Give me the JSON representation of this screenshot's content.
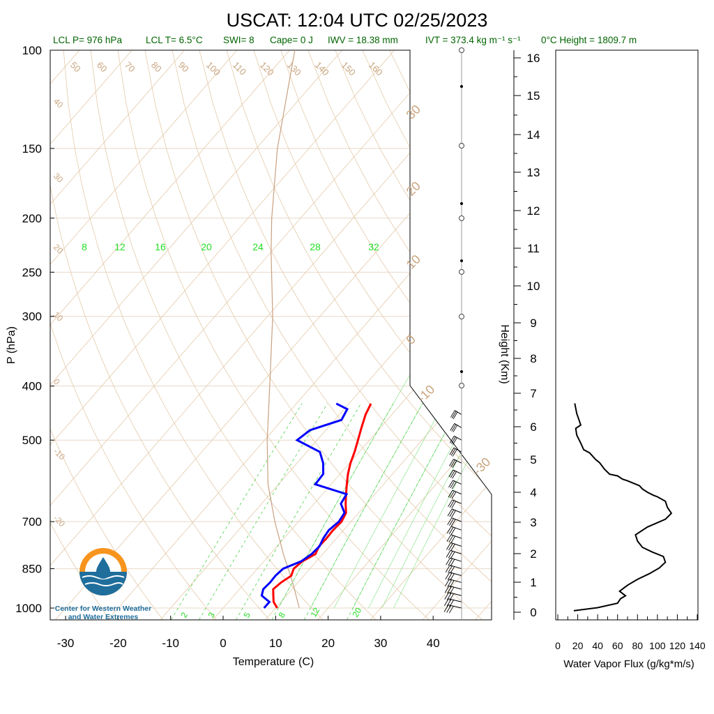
{
  "title": "USCAT: 12:04 UTC 02/25/2023",
  "stats": {
    "lcl_p": "LCL P= 976 hPa",
    "lcl_t": "LCL T= 6.5°C",
    "swi": "SWI= 8",
    "cape": "Cape= 0 J",
    "iwv": "IWV = 18.38 mm",
    "ivt": "IVT = 373.4 kg m⁻¹ s⁻¹",
    "zero_height": "0°C Height = 1809.7 m"
  },
  "logo_text": [
    "Center for Western Weather",
    "and Water Extremes"
  ],
  "colors": {
    "temperature": "#ff0000",
    "dewpoint": "#0000ff",
    "stats_text": "#006400",
    "dry_adiabat": "#d2b48c",
    "mixing_ratio": "#00ff00",
    "parcel": "#c8a080",
    "logo_orange": "#f7941d",
    "logo_blue": "#1f6e9c"
  },
  "chart_data": [
    {
      "type": "skew-t",
      "xlabel": "Temperature (C)",
      "ylabel": "P (hPa)",
      "x_ticks": [
        -30,
        -20,
        -10,
        0,
        10,
        20,
        30,
        40
      ],
      "p_ticks": [
        100,
        150,
        200,
        250,
        300,
        400,
        500,
        700,
        850,
        1000
      ],
      "xlim": [
        -33,
        44
      ],
      "plim": [
        1050,
        100
      ],
      "height_axis_label": "Height (Km)",
      "height_ticks": [
        0,
        1,
        2,
        3,
        4,
        5,
        6,
        7,
        8,
        9,
        10,
        11,
        12,
        13,
        14,
        15,
        16
      ],
      "dry_adiabat_labels": [
        50,
        60,
        70,
        80,
        90,
        100,
        110,
        120,
        130,
        140,
        150,
        160
      ],
      "isotherm_labels_left": [
        40,
        30,
        20,
        10,
        0,
        -10,
        -20
      ],
      "isotherm_labels_right": [
        30,
        20,
        10,
        0,
        -10,
        -30
      ],
      "mixing_ratio_labels_top": [
        8,
        12,
        16,
        20,
        24,
        28,
        32
      ],
      "mixing_ratio_labels_bottom": [
        2,
        3,
        5,
        8,
        12,
        20
      ],
      "temperature": [
        [
          1000,
          10.3
        ],
        [
          975,
          8.6
        ],
        [
          950,
          7.5
        ],
        [
          925,
          6.4
        ],
        [
          900,
          6.8
        ],
        [
          875,
          7.6
        ],
        [
          850,
          6.9
        ],
        [
          825,
          7.3
        ],
        [
          800,
          8.6
        ],
        [
          775,
          8.0
        ],
        [
          750,
          8.1
        ],
        [
          725,
          8.0
        ],
        [
          700,
          8.2
        ],
        [
          675,
          7.6
        ],
        [
          650,
          6.0
        ],
        [
          625,
          4.5
        ],
        [
          600,
          3.0
        ],
        [
          575,
          1.5
        ],
        [
          550,
          0.2
        ],
        [
          525,
          -0.9
        ],
        [
          500,
          -2.2
        ],
        [
          475,
          -3.6
        ],
        [
          450,
          -5.0
        ],
        [
          430,
          -5.8
        ]
      ],
      "dewpoint": [
        [
          1000,
          7.8
        ],
        [
          975,
          7.8
        ],
        [
          950,
          5.3
        ],
        [
          925,
          4.5
        ],
        [
          900,
          4.7
        ],
        [
          875,
          4.6
        ],
        [
          850,
          4.9
        ],
        [
          825,
          7.1
        ],
        [
          800,
          7.9
        ],
        [
          775,
          8.1
        ],
        [
          750,
          7.5
        ],
        [
          725,
          7.2
        ],
        [
          700,
          7.7
        ],
        [
          675,
          7.3
        ],
        [
          650,
          5.1
        ],
        [
          625,
          4.6
        ],
        [
          600,
          -3.0
        ],
        [
          575,
          -3.2
        ],
        [
          550,
          -5.0
        ],
        [
          525,
          -7.5
        ],
        [
          500,
          -13.8
        ],
        [
          480,
          -13.0
        ],
        [
          460,
          -8.7
        ],
        [
          440,
          -9.4
        ],
        [
          430,
          -12.4
        ]
      ],
      "parcel": [
        [
          1000,
          14.5
        ],
        [
          900,
          9.0
        ],
        [
          800,
          2.5
        ],
        [
          700,
          -4.5
        ],
        [
          600,
          -12.0
        ],
        [
          500,
          -19.5
        ],
        [
          400,
          -28.0
        ],
        [
          300,
          -39.0
        ],
        [
          230,
          -50.0
        ],
        [
          200,
          -55.5
        ],
        [
          150,
          -66.0
        ],
        [
          100,
          -79.0
        ]
      ],
      "wind_barb_levels_hpa": [
        1000,
        975,
        950,
        925,
        900,
        875,
        850,
        825,
        800,
        775,
        750,
        725,
        700,
        675,
        650,
        625,
        600,
        575,
        550,
        525,
        500,
        475,
        450
      ]
    },
    {
      "type": "line",
      "xlabel": "Water Vapor Flux (g/kg*m/s)",
      "ylabel": "Height (Km)",
      "xlim": [
        0,
        140
      ],
      "ylim": [
        0,
        16
      ],
      "x_ticks": [
        0,
        20,
        40,
        60,
        80,
        100,
        120,
        140
      ],
      "x": [
        16,
        40,
        60,
        63,
        68,
        62,
        66,
        70,
        80,
        92,
        102,
        108,
        106,
        95,
        85,
        80,
        78,
        90,
        108,
        114,
        110,
        108,
        100,
        96,
        90,
        85,
        82,
        74,
        70,
        65,
        60,
        52,
        47,
        42,
        38,
        32,
        26,
        23,
        19,
        18,
        23,
        19,
        17
      ],
      "y": [
        0.05,
        0.15,
        0.3,
        0.45,
        0.55,
        0.7,
        0.8,
        0.9,
        1.1,
        1.3,
        1.5,
        1.7,
        1.9,
        2.05,
        2.2,
        2.4,
        2.6,
        2.85,
        3.1,
        3.3,
        3.5,
        3.7,
        3.85,
        3.9,
        4.0,
        4.1,
        4.2,
        4.3,
        4.35,
        4.4,
        4.5,
        4.55,
        4.7,
        4.9,
        5.0,
        5.2,
        5.3,
        5.5,
        5.75,
        5.95,
        6.05,
        6.4,
        6.7
      ]
    }
  ]
}
